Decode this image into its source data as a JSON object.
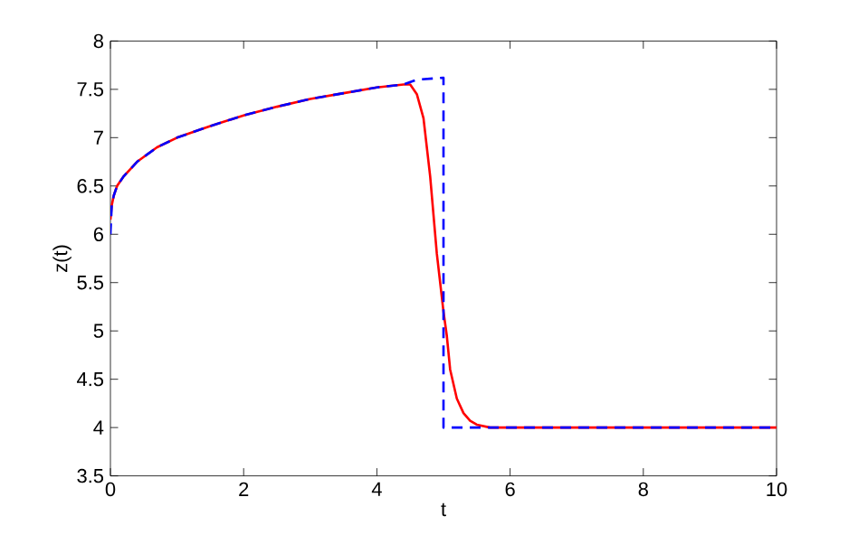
{
  "chart_data": {
    "type": "line",
    "xlabel": "t",
    "ylabel": "z(t)",
    "xlim": [
      0,
      10
    ],
    "ylim": [
      3.5,
      8
    ],
    "xticks": [
      0,
      2,
      4,
      6,
      8,
      10
    ],
    "yticks": [
      3.5,
      4,
      4.5,
      5,
      5.5,
      6,
      6.5,
      7,
      7.5,
      8
    ],
    "grid": false,
    "series": [
      {
        "color": "#ff0000",
        "line_style": "solid",
        "x": [
          0,
          0.02,
          0.05,
          0.1,
          0.2,
          0.4,
          0.7,
          1.0,
          1.5,
          2.0,
          2.5,
          3.0,
          3.5,
          4.0,
          4.4,
          4.5,
          4.6,
          4.7,
          4.8,
          4.9,
          5.0,
          5.05,
          5.1,
          5.2,
          5.3,
          5.4,
          5.5,
          5.7,
          6,
          8,
          10
        ],
        "values": [
          6.15,
          6.3,
          6.4,
          6.5,
          6.6,
          6.75,
          6.9,
          7.0,
          7.12,
          7.23,
          7.32,
          7.4,
          7.46,
          7.52,
          7.55,
          7.55,
          7.45,
          7.2,
          6.6,
          5.8,
          5.2,
          4.95,
          4.6,
          4.3,
          4.15,
          4.07,
          4.03,
          4.0,
          4.0,
          4.0,
          4.0
        ]
      },
      {
        "color": "#0000ff",
        "line_style": "dashed",
        "x": [
          0,
          0.02,
          0.05,
          0.1,
          0.2,
          0.4,
          0.7,
          1.0,
          1.5,
          2.0,
          2.5,
          3.0,
          3.5,
          4.0,
          4.4,
          4.6,
          5.0,
          5.0,
          6,
          8,
          10
        ],
        "values": [
          6.0,
          6.3,
          6.4,
          6.5,
          6.6,
          6.75,
          6.9,
          7.0,
          7.12,
          7.23,
          7.32,
          7.4,
          7.46,
          7.52,
          7.55,
          7.6,
          7.62,
          4.0,
          4.0,
          4.0,
          4.0
        ]
      }
    ]
  }
}
